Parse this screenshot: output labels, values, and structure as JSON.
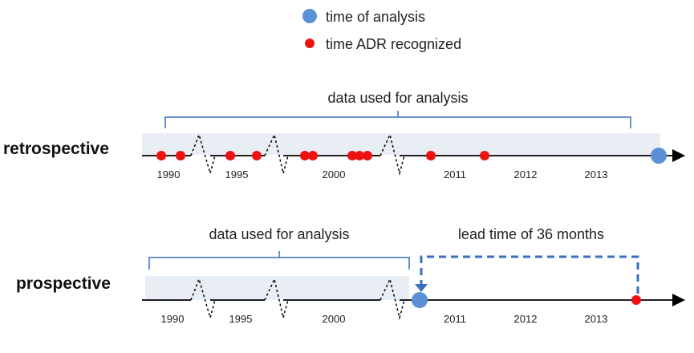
{
  "legend": {
    "analysis_label": "time of analysis",
    "adr_label": "time ADR recognized"
  },
  "colors": {
    "analysis_marker": "#5b8fd6",
    "adr_marker": "#ee1111",
    "data_band": "#e9eef5",
    "bracket": "#3a6fbf",
    "lead_line": "#3a6fbf",
    "axis": "#000000"
  },
  "retrospective": {
    "label": "retrospective",
    "bracket_label": "data used for analysis",
    "ticks": [
      "1990",
      "1995",
      "2000",
      "2011",
      "2012",
      "2013"
    ]
  },
  "prospective": {
    "label": "prospective",
    "bracket_label": "data used for analysis",
    "lead_label": "lead time of 36 months",
    "ticks": [
      "1990",
      "1995",
      "2000",
      "2011",
      "2012",
      "2013"
    ]
  }
}
